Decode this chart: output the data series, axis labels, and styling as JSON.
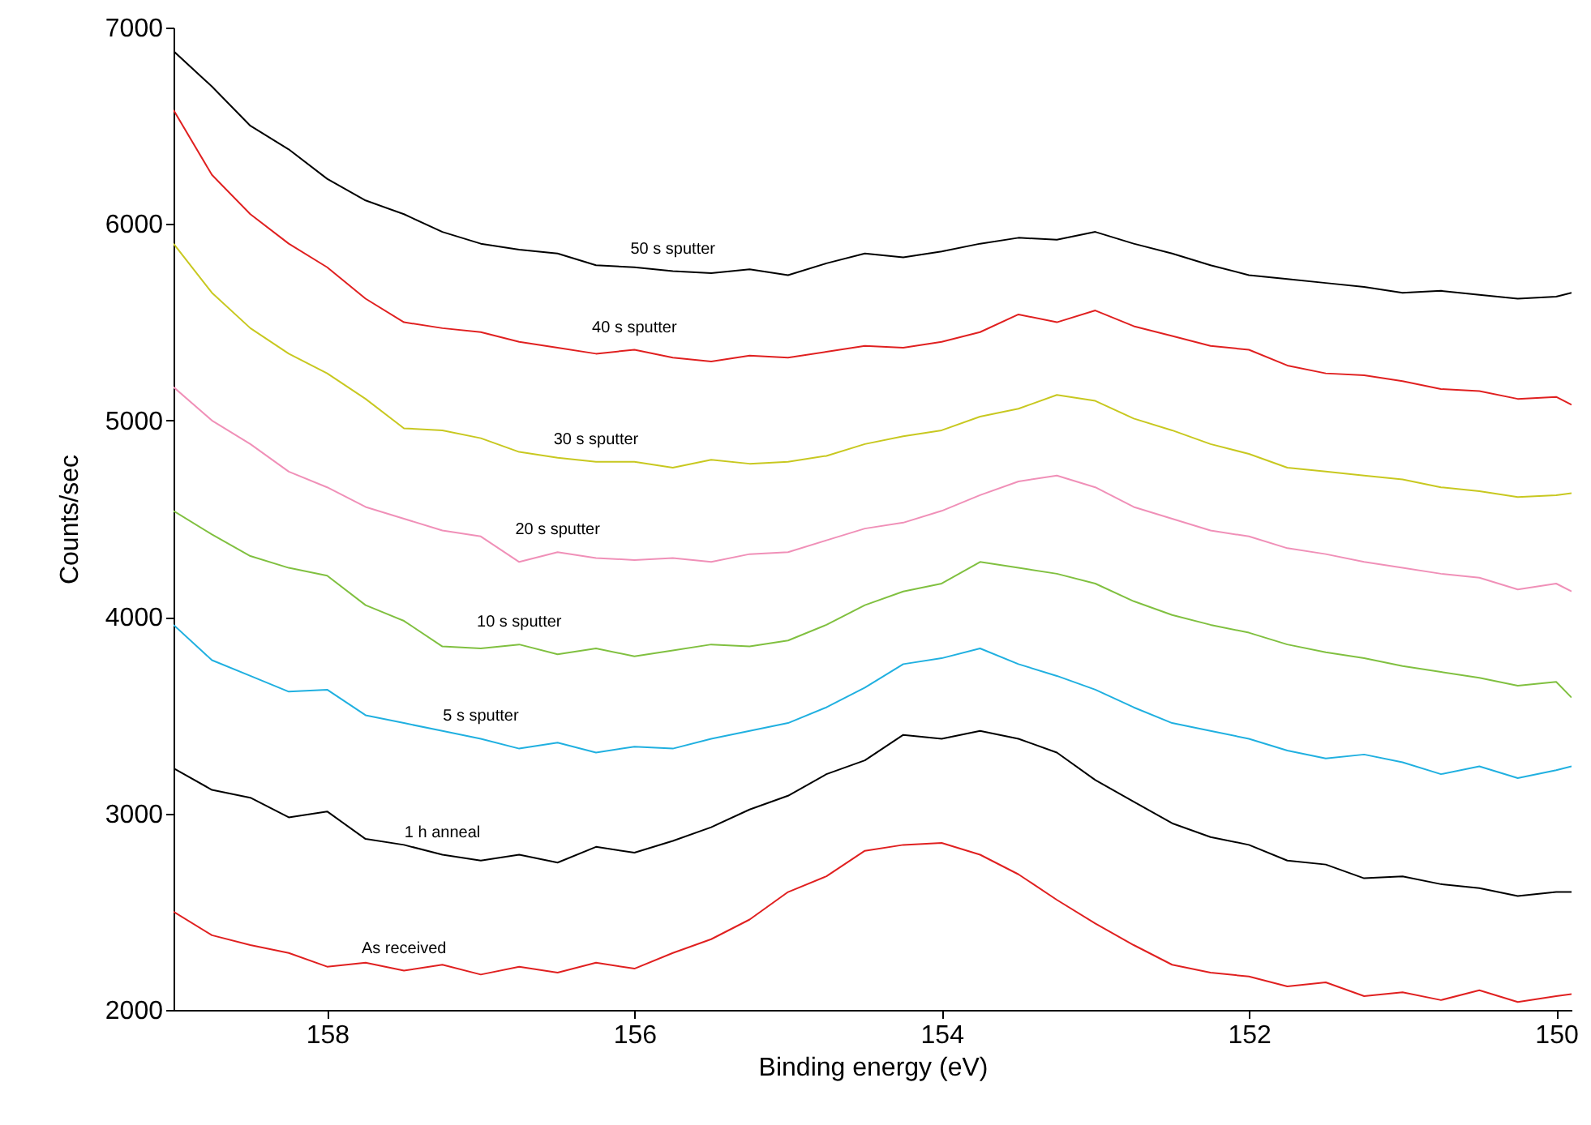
{
  "chart_data": {
    "type": "line",
    "xlabel": "Binding energy (eV)",
    "ylabel": "Counts/sec",
    "x": [
      159,
      158.75,
      158.5,
      158.25,
      158,
      157.75,
      157.5,
      157.25,
      157,
      156.75,
      156.5,
      156.25,
      156,
      155.75,
      155.5,
      155.25,
      155,
      154.75,
      154.5,
      154.25,
      154,
      153.75,
      153.5,
      153.25,
      153,
      152.75,
      152.5,
      152.25,
      152,
      151.75,
      151.5,
      151.25,
      151,
      150.75,
      150.5,
      150.25,
      150,
      149.9
    ],
    "series": [
      {
        "name": "As received",
        "color": "#e02020",
        "values": [
          2500,
          2380,
          2330,
          2290,
          2220,
          2240,
          2200,
          2230,
          2180,
          2220,
          2190,
          2240,
          2210,
          2290,
          2360,
          2460,
          2600,
          2680,
          2810,
          2840,
          2850,
          2790,
          2690,
          2560,
          2440,
          2330,
          2230,
          2190,
          2170,
          2120,
          2140,
          2070,
          2090,
          2050,
          2100,
          2040,
          2070,
          2080
        ]
      },
      {
        "name": "1 h anneal",
        "color": "#000000",
        "values": [
          3230,
          3120,
          3080,
          2980,
          3010,
          2870,
          2840,
          2790,
          2760,
          2790,
          2750,
          2830,
          2800,
          2860,
          2930,
          3020,
          3090,
          3200,
          3270,
          3400,
          3380,
          3420,
          3380,
          3310,
          3170,
          3060,
          2950,
          2880,
          2840,
          2760,
          2740,
          2670,
          2680,
          2640,
          2620,
          2580,
          2600,
          2600
        ]
      },
      {
        "name": "5 s sputter",
        "color": "#20b0e0",
        "values": [
          3960,
          3780,
          3700,
          3620,
          3630,
          3500,
          3460,
          3420,
          3380,
          3330,
          3360,
          3310,
          3340,
          3330,
          3380,
          3420,
          3460,
          3540,
          3640,
          3760,
          3790,
          3840,
          3760,
          3700,
          3630,
          3540,
          3460,
          3420,
          3380,
          3320,
          3280,
          3300,
          3260,
          3200,
          3240,
          3180,
          3220,
          3240
        ]
      },
      {
        "name": "10 s sputter",
        "color": "#80c040",
        "values": [
          4540,
          4420,
          4310,
          4250,
          4210,
          4060,
          3980,
          3850,
          3840,
          3860,
          3810,
          3840,
          3800,
          3830,
          3860,
          3850,
          3880,
          3960,
          4060,
          4130,
          4170,
          4280,
          4250,
          4220,
          4170,
          4080,
          4010,
          3960,
          3920,
          3860,
          3820,
          3790,
          3750,
          3720,
          3690,
          3650,
          3670,
          3590
        ]
      },
      {
        "name": "20 s sputter",
        "color": "#f090b8",
        "values": [
          5170,
          5000,
          4880,
          4740,
          4660,
          4560,
          4500,
          4440,
          4410,
          4280,
          4330,
          4300,
          4290,
          4300,
          4280,
          4320,
          4330,
          4390,
          4450,
          4480,
          4540,
          4620,
          4690,
          4720,
          4660,
          4560,
          4500,
          4440,
          4410,
          4350,
          4320,
          4280,
          4250,
          4220,
          4200,
          4140,
          4170,
          4130
        ]
      },
      {
        "name": "30 s sputter",
        "color": "#c8c820",
        "values": [
          5900,
          5650,
          5470,
          5340,
          5240,
          5110,
          4960,
          4950,
          4910,
          4840,
          4810,
          4790,
          4790,
          4760,
          4800,
          4780,
          4790,
          4820,
          4880,
          4920,
          4950,
          5020,
          5060,
          5130,
          5100,
          5010,
          4950,
          4880,
          4830,
          4760,
          4740,
          4720,
          4700,
          4660,
          4640,
          4610,
          4620,
          4630
        ]
      },
      {
        "name": "40 s sputter",
        "color": "#e02020",
        "values": [
          6580,
          6250,
          6050,
          5900,
          5780,
          5620,
          5500,
          5470,
          5450,
          5400,
          5370,
          5340,
          5360,
          5320,
          5300,
          5330,
          5320,
          5350,
          5380,
          5370,
          5400,
          5450,
          5540,
          5500,
          5560,
          5480,
          5430,
          5380,
          5360,
          5280,
          5240,
          5230,
          5200,
          5160,
          5150,
          5110,
          5120,
          5080
        ]
      },
      {
        "name": "50 s sputter",
        "color": "#000000",
        "values": [
          6880,
          6700,
          6500,
          6380,
          6230,
          6120,
          6050,
          5960,
          5900,
          5870,
          5850,
          5790,
          5780,
          5760,
          5750,
          5770,
          5740,
          5800,
          5850,
          5830,
          5860,
          5900,
          5930,
          5920,
          5960,
          5900,
          5850,
          5790,
          5740,
          5720,
          5700,
          5680,
          5650,
          5660,
          5640,
          5620,
          5630,
          5650
        ]
      }
    ],
    "xlim": [
      159,
      149.9
    ],
    "xticks": [
      158,
      156,
      154,
      152,
      150
    ],
    "ylim": [
      2000,
      7000
    ],
    "yticks": [
      2000,
      3000,
      4000,
      5000,
      6000,
      7000
    ],
    "grid": false
  }
}
